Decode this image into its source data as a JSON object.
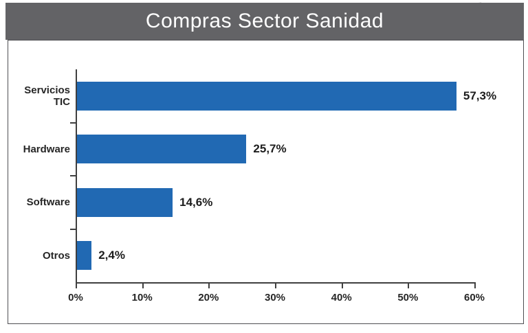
{
  "header": {
    "title": "Compras Sector Sanidad"
  },
  "chart_data": {
    "type": "bar",
    "orientation": "horizontal",
    "title": "Compras Sector Sanidad",
    "categories": [
      "Servicios TIC",
      "Hardware",
      "Software",
      "Otros"
    ],
    "values": [
      57.3,
      25.7,
      14.6,
      2.4
    ],
    "value_labels": [
      "57,3%",
      "25,7%",
      "14,6%",
      "2,4%"
    ],
    "x_ticks": [
      "0%",
      "10%",
      "20%",
      "30%",
      "40%",
      "50%",
      "60%"
    ],
    "xlim": [
      0,
      60
    ],
    "xlabel": "",
    "ylabel": "",
    "grid": false,
    "legend": false,
    "colors": {
      "bar": "#2169B3",
      "header_bg": "#636366",
      "header_text": "#FFFFFF",
      "axis": "#3F3F3F",
      "text": "#262626",
      "panel_border": "#4E4E52"
    }
  }
}
